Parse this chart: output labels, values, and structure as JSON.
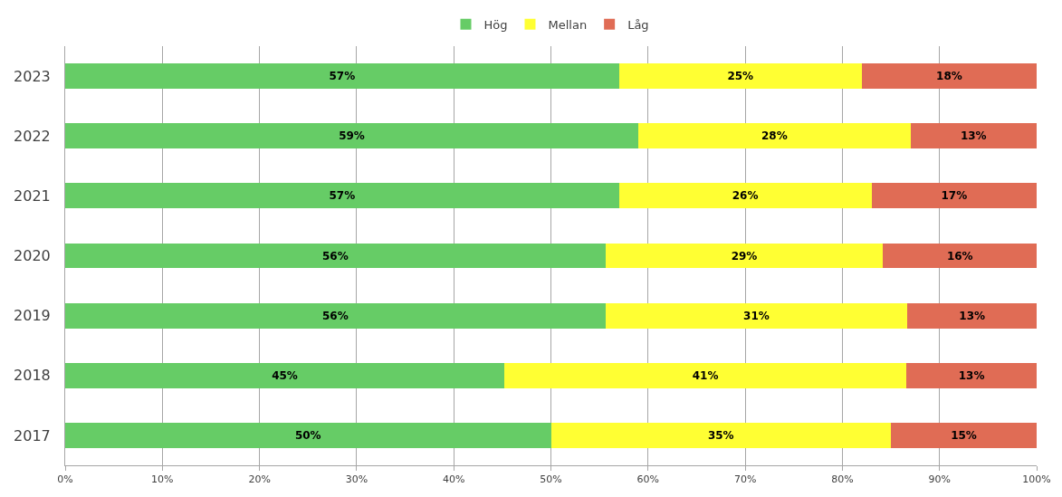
{
  "chart_data": {
    "type": "bar",
    "orientation": "horizontal",
    "stacked": true,
    "categories": [
      "2023",
      "2022",
      "2021",
      "2020",
      "2019",
      "2018",
      "2017"
    ],
    "series": [
      {
        "name": "Hög",
        "color": "#66cc66",
        "values": [
          57,
          59,
          57,
          55.6,
          55.6,
          45.2,
          50
        ],
        "value_labels": [
          "57%",
          "59%",
          "57%",
          "56%",
          "56%",
          "45%",
          "50%"
        ]
      },
      {
        "name": "Mellan",
        "color": "#ffff33",
        "values": [
          25,
          28,
          26,
          28.6,
          31.1,
          41.4,
          35
        ],
        "value_labels": [
          "25%",
          "28%",
          "26%",
          "29%",
          "31%",
          "41%",
          "35%"
        ]
      },
      {
        "name": "Låg",
        "color": "#e06c55",
        "values": [
          18,
          13,
          17,
          15.8,
          13.3,
          13.4,
          15
        ],
        "value_labels": [
          "18%",
          "13%",
          "17%",
          "16%",
          "13%",
          "13%",
          "15%"
        ]
      }
    ],
    "xlim": [
      0,
      100
    ],
    "xticks": [
      {
        "value": 0,
        "label": "0%"
      },
      {
        "value": 10,
        "label": "10%"
      },
      {
        "value": 20,
        "label": "20%"
      },
      {
        "value": 30,
        "label": "30%"
      },
      {
        "value": 40,
        "label": "40%"
      },
      {
        "value": 50,
        "label": "50%"
      },
      {
        "value": 60,
        "label": "60%"
      },
      {
        "value": 70,
        "label": "70%"
      },
      {
        "value": 80,
        "label": "80%"
      },
      {
        "value": 90,
        "label": "90%"
      },
      {
        "value": 100,
        "label": "100%"
      }
    ],
    "grid": "x",
    "legend": "top"
  }
}
